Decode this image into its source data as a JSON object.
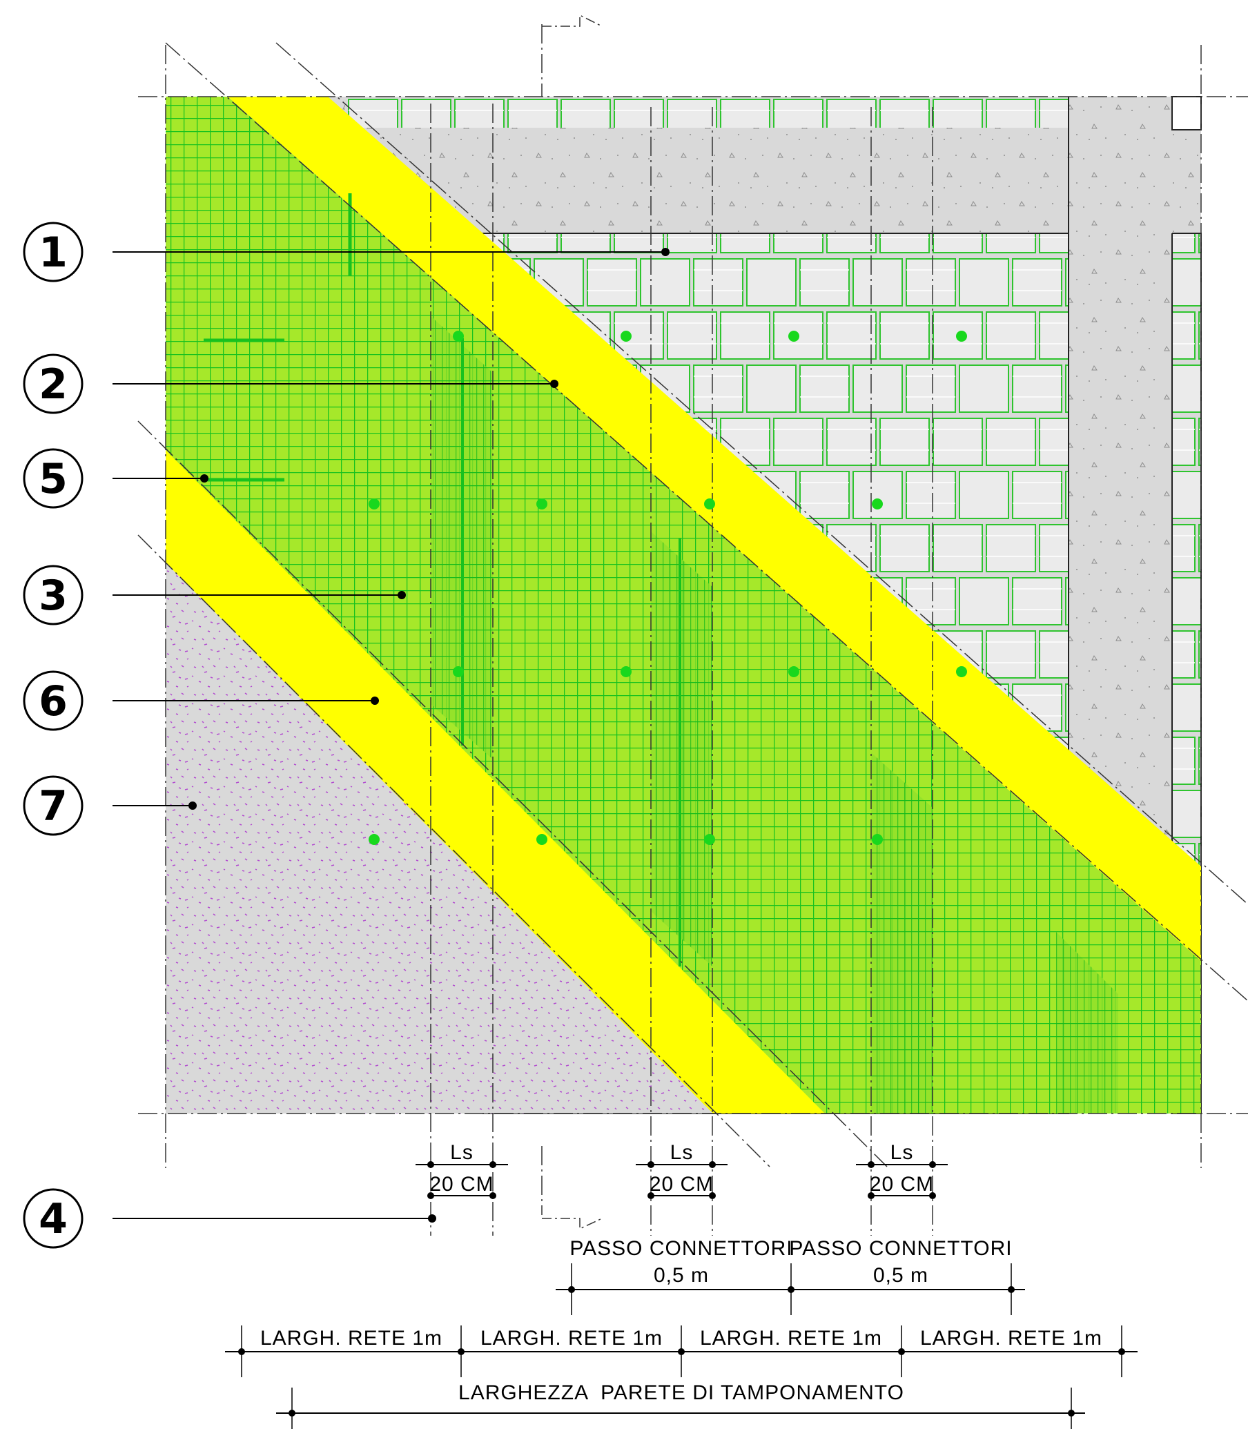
{
  "callouts": [
    "1",
    "2",
    "5",
    "3",
    "6",
    "7",
    "4"
  ],
  "ls_blocks": [
    {
      "symbol": "Ls",
      "value": "20 CM"
    },
    {
      "symbol": "Ls",
      "value": "20 CM"
    },
    {
      "symbol": "Ls",
      "value": "20 CM"
    }
  ],
  "connector_spacing": [
    {
      "title": "PASSO CONNETTORI",
      "value": "0,5 m"
    },
    {
      "title": "PASSO CONNETTORI",
      "value": "0,5 m"
    }
  ],
  "mesh_widths": [
    "LARGH. RETE 1m",
    "LARGH. RETE 1m",
    "LARGH. RETE 1m",
    "LARGH. RETE 1m"
  ],
  "overall_width": "LARGHEZZA  PARETE DI TAMPONAMENTO",
  "colors": {
    "yellow_band": "#ffff00",
    "mesh_fill": "#a6e82a",
    "mesh_grid": "#18c21f",
    "connector_dot": "#18d81d",
    "concrete": "#d9d9d9",
    "plaster_speckle": "#b24bd0",
    "brick_outline": "#2ec42e"
  }
}
